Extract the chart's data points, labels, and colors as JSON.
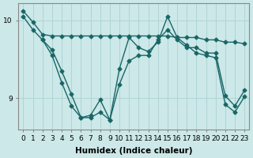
{
  "xlabel": "Humidex (Indice chaleur)",
  "ylabel": "",
  "bg_color": "#cce8e8",
  "grid_color": "#b0d4d4",
  "line_color": "#1a6666",
  "xlim": [
    -0.5,
    23.5
  ],
  "ylim": [
    8.6,
    10.22
  ],
  "yticks": [
    9,
    10
  ],
  "xticks": [
    0,
    1,
    2,
    3,
    4,
    5,
    6,
    7,
    8,
    9,
    10,
    11,
    12,
    13,
    14,
    15,
    16,
    17,
    18,
    19,
    20,
    21,
    22,
    23
  ],
  "line1": {
    "x": [
      0,
      1,
      2,
      3,
      4,
      5,
      6,
      7,
      8,
      9,
      10,
      11,
      12,
      13,
      14,
      15,
      16,
      17,
      18,
      19,
      20,
      21,
      22,
      23
    ],
    "y": [
      10.12,
      9.98,
      9.82,
      9.8,
      9.8,
      9.8,
      9.8,
      9.8,
      9.8,
      9.8,
      9.8,
      9.8,
      9.8,
      9.8,
      9.8,
      9.8,
      9.78,
      9.78,
      9.78,
      9.75,
      9.75,
      9.72,
      9.72,
      9.7
    ]
  },
  "line2": {
    "x": [
      0,
      1,
      2,
      3,
      4,
      5,
      6,
      7,
      8,
      9,
      10,
      11,
      12,
      13,
      14,
      15,
      16,
      17,
      18,
      19,
      20,
      21,
      22,
      23
    ],
    "y": [
      10.05,
      9.88,
      9.75,
      9.62,
      9.35,
      9.05,
      8.75,
      8.75,
      8.82,
      8.72,
      9.18,
      9.48,
      9.55,
      9.55,
      9.75,
      9.88,
      9.75,
      9.65,
      9.65,
      9.58,
      9.58,
      9.03,
      8.9,
      9.1
    ]
  },
  "line3": {
    "x": [
      2,
      3,
      4,
      5,
      6,
      7,
      8,
      9,
      10,
      11,
      12,
      13,
      14,
      15,
      16,
      17,
      18,
      19,
      20,
      21,
      22,
      23
    ],
    "y": [
      9.75,
      9.55,
      9.2,
      8.9,
      8.75,
      8.78,
      8.98,
      8.72,
      9.38,
      9.78,
      9.65,
      9.6,
      9.72,
      10.05,
      9.78,
      9.68,
      9.58,
      9.55,
      9.52,
      8.92,
      8.82,
      9.02
    ]
  },
  "marker_size": 2.5,
  "line_width": 1.0,
  "font_size_ticks": 6.5,
  "font_size_label": 7.5
}
